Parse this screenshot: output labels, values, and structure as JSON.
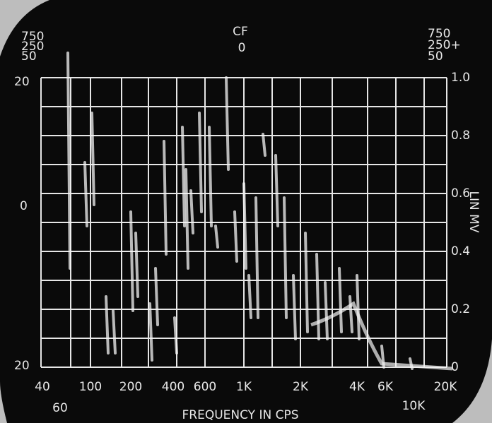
{
  "screen": {
    "top_left_labels": [
      "750",
      "250",
      "50"
    ],
    "top_center_labels": [
      "CF",
      "0"
    ],
    "top_right_labels": [
      "750",
      "250+",
      "50"
    ],
    "left_scale": [
      "20",
      "0",
      "20"
    ],
    "right_scale": [
      "1.0",
      "0.8",
      "0.6",
      "0.4",
      "0.2",
      "0"
    ],
    "right_axis_label": "LIN MV",
    "frequency_labels": [
      "40",
      "60",
      "100",
      "200",
      "400",
      "600",
      "1K",
      "2K",
      "4K",
      "6K",
      "10K",
      "20K"
    ],
    "x_axis_label": "FREQUENCY IN CPS"
  }
}
